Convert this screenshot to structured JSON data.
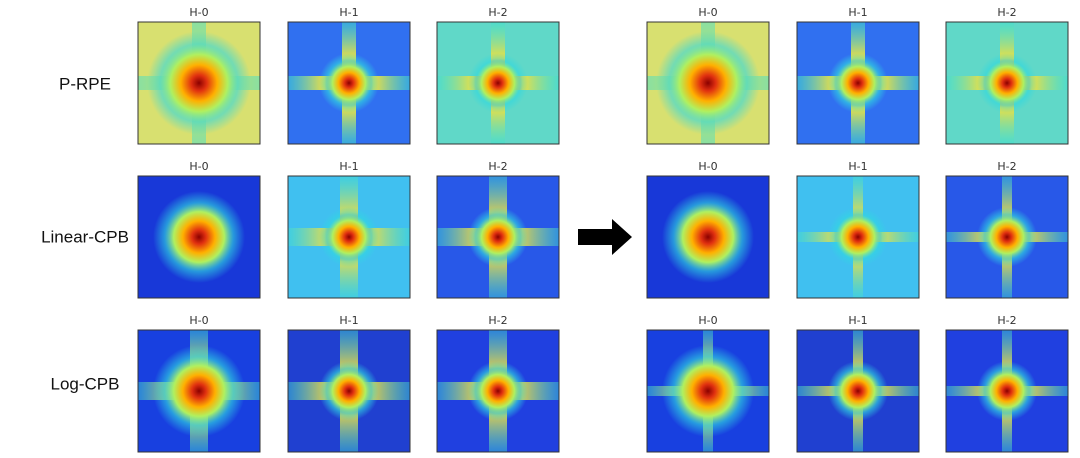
{
  "rows": [
    {
      "label": "P-RPE",
      "left": [
        "H-0",
        "H-1",
        "H-2"
      ],
      "right": [
        "H-0",
        "H-1",
        "H-2"
      ]
    },
    {
      "label": "Linear-CPB",
      "left": [
        "H-0",
        "H-1",
        "H-2"
      ],
      "right": [
        "H-0",
        "H-1",
        "H-2"
      ]
    },
    {
      "label": "Log-CPB",
      "left": [
        "H-0",
        "H-1",
        "H-2"
      ],
      "right": [
        "H-0",
        "H-1",
        "H-2"
      ]
    }
  ]
}
